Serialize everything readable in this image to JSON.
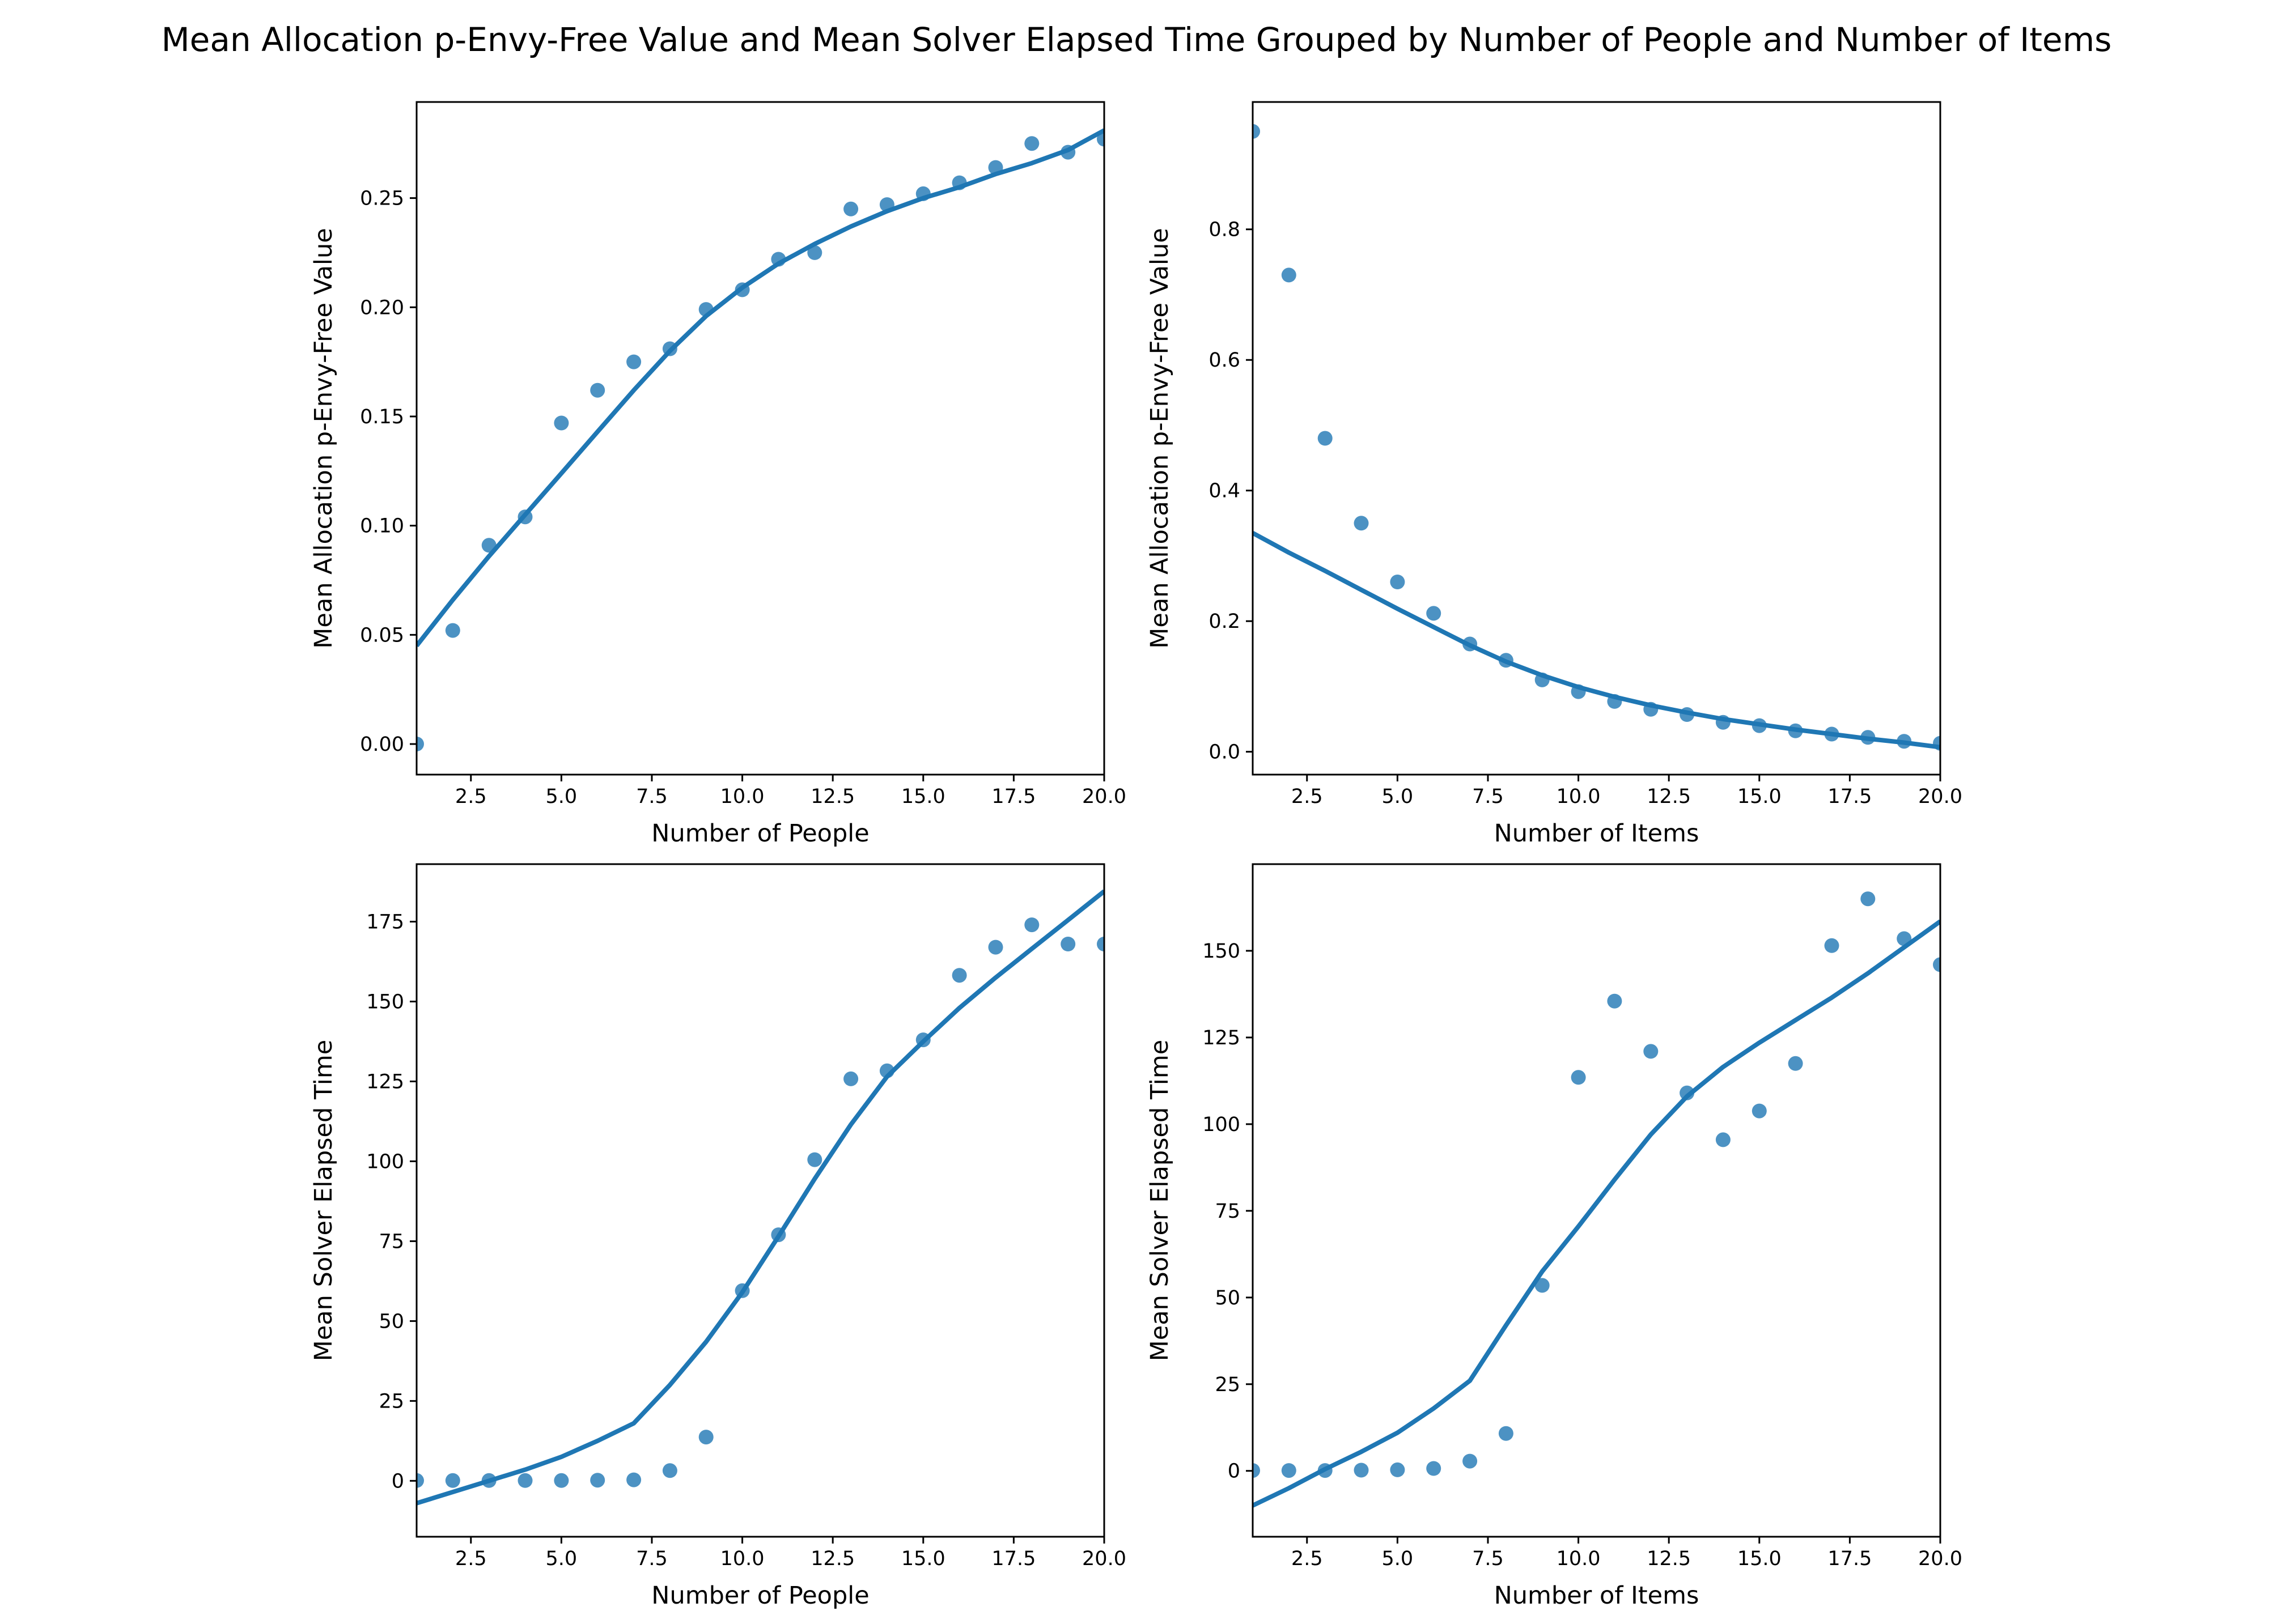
{
  "title": "Mean Allocation p-Envy-Free Value and Mean Solver Elapsed Time Grouped by Number of People and Number of Items",
  "colors": {
    "series": "#1f77b4"
  },
  "chart_data": [
    {
      "type": "scatter",
      "xlabel": "Number of People",
      "ylabel": "Mean Allocation p-Envy-Free Value",
      "xlim": [
        1,
        20
      ],
      "ylim": [
        -0.014,
        0.294
      ],
      "xticks": [
        2.5,
        5.0,
        7.5,
        10.0,
        12.5,
        15.0,
        17.5,
        20.0
      ],
      "xtick_labels": [
        "2.5",
        "5.0",
        "7.5",
        "10.0",
        "12.5",
        "15.0",
        "17.5",
        "20.0"
      ],
      "yticks": [
        0.0,
        0.05,
        0.1,
        0.15,
        0.2,
        0.25
      ],
      "ytick_labels": [
        "0.00",
        "0.05",
        "0.10",
        "0.15",
        "0.20",
        "0.25"
      ],
      "x": [
        1,
        2,
        3,
        4,
        5,
        6,
        7,
        8,
        9,
        10,
        11,
        12,
        13,
        14,
        15,
        16,
        17,
        18,
        19,
        20
      ],
      "y": [
        0.0,
        0.052,
        0.091,
        0.104,
        0.147,
        0.162,
        0.175,
        0.181,
        0.199,
        0.208,
        0.222,
        0.225,
        0.245,
        0.247,
        0.252,
        0.257,
        0.264,
        0.275,
        0.271,
        0.277
      ],
      "trend": {
        "x": [
          1,
          2,
          3,
          4,
          5,
          6,
          7,
          8,
          9,
          10,
          11,
          12,
          13,
          14,
          15,
          16,
          17,
          18,
          19,
          20
        ],
        "y": [
          0.045,
          0.066,
          0.086,
          0.105,
          0.124,
          0.143,
          0.162,
          0.18,
          0.196,
          0.209,
          0.22,
          0.229,
          0.237,
          0.244,
          0.25,
          0.255,
          0.261,
          0.266,
          0.272,
          0.281
        ]
      }
    },
    {
      "type": "scatter",
      "xlabel": "Number of Items",
      "ylabel": "Mean Allocation p-Envy-Free Value",
      "xlim": [
        1,
        20
      ],
      "ylim": [
        -0.035,
        0.995
      ],
      "xticks": [
        2.5,
        5.0,
        7.5,
        10.0,
        12.5,
        15.0,
        17.5,
        20.0
      ],
      "xtick_labels": [
        "2.5",
        "5.0",
        "7.5",
        "10.0",
        "12.5",
        "15.0",
        "17.5",
        "20.0"
      ],
      "yticks": [
        0.0,
        0.2,
        0.4,
        0.6,
        0.8
      ],
      "ytick_labels": [
        "0.0",
        "0.2",
        "0.4",
        "0.6",
        "0.8"
      ],
      "x": [
        1,
        2,
        3,
        4,
        5,
        6,
        7,
        8,
        9,
        10,
        11,
        12,
        13,
        14,
        15,
        16,
        17,
        18,
        19,
        20
      ],
      "y": [
        0.95,
        0.73,
        0.48,
        0.35,
        0.26,
        0.212,
        0.165,
        0.14,
        0.11,
        0.092,
        0.077,
        0.065,
        0.057,
        0.045,
        0.04,
        0.032,
        0.027,
        0.022,
        0.016,
        0.013
      ],
      "trend": {
        "x": [
          1,
          2,
          3,
          4,
          5,
          6,
          7,
          8,
          9,
          10,
          11,
          12,
          13,
          14,
          15,
          16,
          17,
          18,
          19,
          20
        ],
        "y": [
          0.335,
          0.305,
          0.277,
          0.248,
          0.219,
          0.191,
          0.163,
          0.138,
          0.117,
          0.099,
          0.084,
          0.071,
          0.06,
          0.05,
          0.042,
          0.034,
          0.027,
          0.02,
          0.014,
          0.007
        ]
      }
    },
    {
      "type": "scatter",
      "xlabel": "Number of People",
      "ylabel": "Mean Solver Elapsed Time",
      "xlim": [
        1,
        20
      ],
      "ylim": [
        -17.5,
        193
      ],
      "xticks": [
        2.5,
        5.0,
        7.5,
        10.0,
        12.5,
        15.0,
        17.5,
        20.0
      ],
      "xtick_labels": [
        "2.5",
        "5.0",
        "7.5",
        "10.0",
        "12.5",
        "15.0",
        "17.5",
        "20.0"
      ],
      "yticks": [
        0,
        25,
        50,
        75,
        100,
        125,
        150,
        175
      ],
      "ytick_labels": [
        "0",
        "25",
        "50",
        "75",
        "100",
        "125",
        "150",
        "175"
      ],
      "x": [
        1,
        2,
        3,
        4,
        5,
        6,
        7,
        8,
        9,
        10,
        11,
        12,
        13,
        14,
        15,
        16,
        17,
        18,
        19,
        20
      ],
      "y": [
        0.1,
        0.1,
        0.1,
        0.1,
        0.1,
        0.2,
        0.3,
        3.2,
        13.7,
        59.5,
        77.0,
        100.5,
        125.8,
        128.3,
        138.0,
        158.2,
        167.0,
        174.0,
        168.0,
        168.0
      ],
      "trend": {
        "x": [
          1,
          2,
          3,
          4,
          5,
          6,
          7,
          8,
          9,
          10,
          11,
          12,
          13,
          14,
          15,
          16,
          17,
          18,
          19,
          20
        ],
        "y": [
          -7.0,
          -3.5,
          0.0,
          3.5,
          7.5,
          12.5,
          18.0,
          30.0,
          43.5,
          59.0,
          76.5,
          94.5,
          111.5,
          126.5,
          137.5,
          148.0,
          157.5,
          166.5,
          175.5,
          184.5
        ]
      }
    },
    {
      "type": "scatter",
      "xlabel": "Number of Items",
      "ylabel": "Mean Solver Elapsed Time",
      "xlim": [
        1,
        20
      ],
      "ylim": [
        -19,
        175
      ],
      "xticks": [
        2.5,
        5.0,
        7.5,
        10.0,
        12.5,
        15.0,
        17.5,
        20.0
      ],
      "xtick_labels": [
        "2.5",
        "5.0",
        "7.5",
        "10.0",
        "12.5",
        "15.0",
        "17.5",
        "20.0"
      ],
      "yticks": [
        0,
        25,
        50,
        75,
        100,
        125,
        150
      ],
      "ytick_labels": [
        "0",
        "25",
        "50",
        "75",
        "100",
        "125",
        "150"
      ],
      "x": [
        1,
        2,
        3,
        4,
        5,
        6,
        7,
        8,
        9,
        10,
        11,
        12,
        13,
        14,
        15,
        16,
        17,
        18,
        19,
        20
      ],
      "y": [
        0.1,
        0.1,
        0.1,
        0.2,
        0.3,
        0.7,
        2.8,
        10.8,
        53.5,
        113.5,
        135.5,
        121.0,
        109.0,
        95.5,
        103.8,
        117.5,
        151.5,
        165.0,
        153.5,
        146.0
      ],
      "trend": {
        "x": [
          1,
          2,
          3,
          4,
          5,
          6,
          7,
          8,
          9,
          10,
          11,
          12,
          13,
          14,
          15,
          16,
          17,
          18,
          19,
          20
        ],
        "y": [
          -10.0,
          -5.0,
          0.5,
          5.5,
          11.0,
          18.0,
          26.0,
          42.0,
          57.5,
          70.5,
          84.0,
          97.0,
          108.0,
          116.5,
          123.5,
          130.0,
          136.5,
          143.5,
          151.0,
          158.5
        ]
      }
    }
  ]
}
